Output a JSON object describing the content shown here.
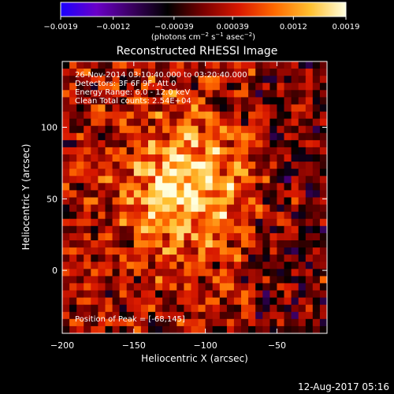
{
  "chart_data": {
    "type": "heatmap",
    "title": "Reconstructed RHESSI Image",
    "xlabel": "Heliocentric X (arcsec)",
    "ylabel": "Heliocentric Y (arcsec)",
    "xlim": [
      -200,
      -15
    ],
    "ylim": [
      -44,
      146
    ],
    "x_ticks": [
      "−200",
      "−150",
      "−100",
      "−50"
    ],
    "x_tick_values": [
      -200,
      -150,
      -100,
      -50
    ],
    "y_ticks": [
      "100",
      "50",
      "0"
    ],
    "y_tick_values": [
      100,
      50,
      0
    ],
    "colorbar": {
      "unit_label": "(photons cm",
      "unit_exp1": "−2",
      "unit_mid": " s",
      "unit_exp2": "−1",
      "unit_mid2": " asec",
      "unit_exp3": "−2",
      "unit_close": ")",
      "tick_labels": [
        "−0.0019",
        "−0.0012",
        "−0.00039",
        "0.00039",
        "0.0012",
        "0.0019"
      ],
      "tick_values": [
        -0.0019,
        -0.0012,
        -0.00039,
        0.00039,
        0.0012,
        0.0019
      ],
      "range": [
        -0.0019,
        0.0019
      ],
      "colormap": [
        "#1a00ff",
        "#6a00c8",
        "#3a0060",
        "#000000",
        "#7a0000",
        "#d81800",
        "#ff6a00",
        "#ffc030",
        "#ffffe0"
      ]
    },
    "annotations": [
      "26-Nov-2014 03:10:40.000 to 03:20:40.000",
      "Detectors: 3F 6F 9F, Att 0",
      "Energy Range: 6.0 - 12.0 keV",
      "Clean    Total counts: 2.54E+04"
    ],
    "peak_label": "Position of Peak = [-68,145]",
    "peak_position": [
      -68,
      145
    ],
    "source_center": [
      -115,
      60
    ]
  },
  "footer": {
    "date": "12-Aug-2017 05:16"
  }
}
